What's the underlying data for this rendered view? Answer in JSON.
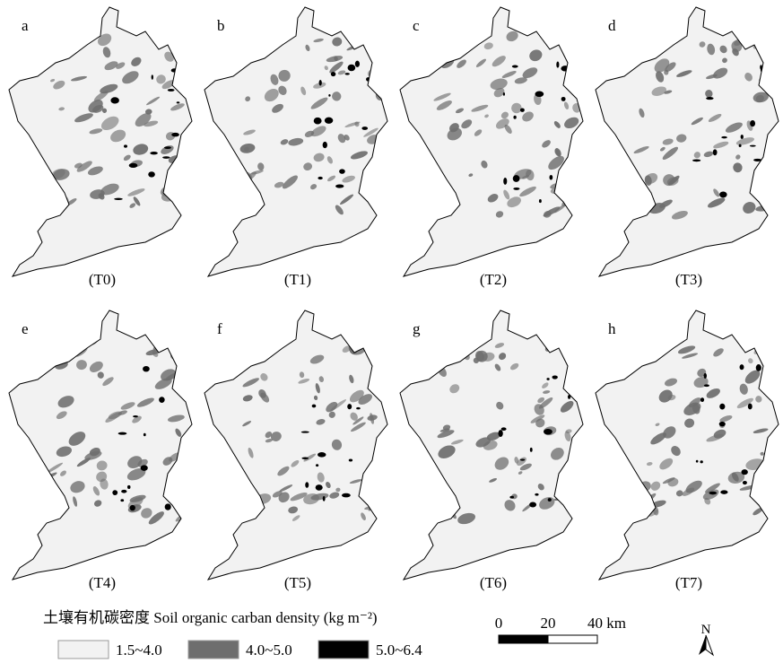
{
  "panels": [
    {
      "letter": "a",
      "label": "(T0)"
    },
    {
      "letter": "b",
      "label": "(T1)"
    },
    {
      "letter": "c",
      "label": "(T2)"
    },
    {
      "letter": "d",
      "label": "(T3)"
    },
    {
      "letter": "e",
      "label": "(T4)"
    },
    {
      "letter": "f",
      "label": "(T5)"
    },
    {
      "letter": "g",
      "label": "(T6)"
    },
    {
      "letter": "h",
      "label": "(T7)"
    }
  ],
  "legend": {
    "title": "土壤有机碳密度 Soil organic carban density (kg m⁻²)",
    "items": [
      {
        "label": "1.5~4.0",
        "color": "#f2f2f2"
      },
      {
        "label": "4.0~5.0",
        "color": "#6e6e6e"
      },
      {
        "label": "5.0~6.4",
        "color": "#000000"
      }
    ]
  },
  "scale_bar": {
    "ticks": [
      "0",
      "20",
      "40 km"
    ]
  },
  "north": "N"
}
